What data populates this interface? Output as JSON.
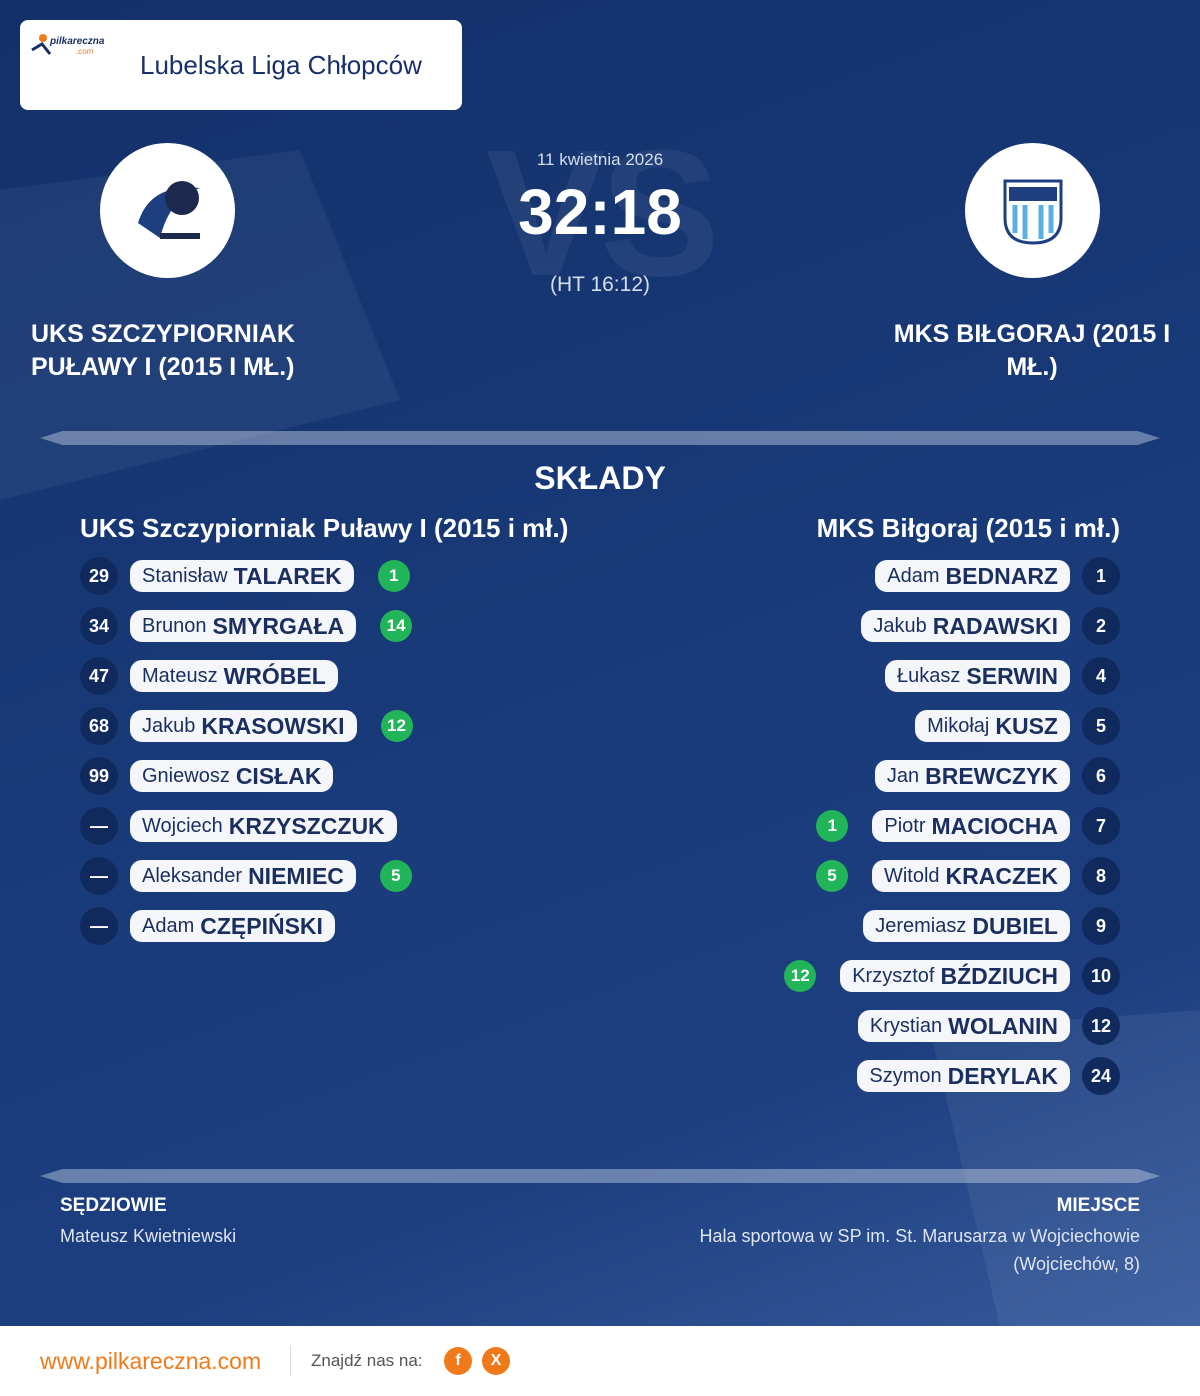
{
  "header": {
    "logo_text": "pilkareczna",
    "logo_sub": ".com",
    "league": "Lubelska Liga Chłopców"
  },
  "match": {
    "vs": "VS",
    "date": "11 kwietnia 2026",
    "score": "32:18",
    "halftime": "(HT 16:12)",
    "home": "UKS SZCZYPIORNIAK PUŁAWY I (2015 I MŁ.)",
    "away": "MKS BIŁGORAJ (2015 I MŁ.)"
  },
  "lineups": {
    "title": "SKŁADY",
    "home": {
      "name": "UKS Szczypiorniak Puławy I (2015 i mł.)",
      "players": [
        {
          "number": 29,
          "first": "Stanisław",
          "last": "TALAREK",
          "goals": 1
        },
        {
          "number": 34,
          "first": "Brunon",
          "last": "SMYRGAŁA",
          "goals": 14
        },
        {
          "number": 47,
          "first": "Mateusz",
          "last": "WRÓBEL"
        },
        {
          "number": 68,
          "first": "Jakub",
          "last": "KRASOWSKI",
          "goals": 12
        },
        {
          "number": 99,
          "first": "Gniewosz",
          "last": "CISŁAK"
        },
        {
          "number": "—",
          "first": "Wojciech",
          "last": "KRZYSZCZUK"
        },
        {
          "number": "—",
          "first": "Aleksander",
          "last": "NIEMIEC",
          "goals": 5
        },
        {
          "number": "—",
          "first": "Adam",
          "last": "CZĘPIŃSKI"
        }
      ]
    },
    "away": {
      "name": "MKS Biłgoraj (2015 i mł.)",
      "players": [
        {
          "number": 1,
          "first": "Adam",
          "last": "BEDNARZ"
        },
        {
          "number": 2,
          "first": "Jakub",
          "last": "RADAWSKI"
        },
        {
          "number": 4,
          "first": "Łukasz",
          "last": "SERWIN"
        },
        {
          "number": 5,
          "first": "Mikołaj",
          "last": "KUSZ"
        },
        {
          "number": 6,
          "first": "Jan",
          "last": "BREWCZYK"
        },
        {
          "number": 7,
          "first": "Piotr",
          "last": "MACIOCHA",
          "goals": 1
        },
        {
          "number": 8,
          "first": "Witold",
          "last": "KRACZEK",
          "goals": 5
        },
        {
          "number": 9,
          "first": "Jeremiasz",
          "last": "DUBIEL"
        },
        {
          "number": 10,
          "first": "Krzysztof",
          "last": "BŹDZIUCH",
          "goals": 12
        },
        {
          "number": 12,
          "first": "Krystian",
          "last": "WOLANIN"
        },
        {
          "number": 24,
          "first": "Szymon",
          "last": "DERYLAK"
        }
      ]
    }
  },
  "officials": {
    "label": "SĘDZIOWIE",
    "referee": "Mateusz Kwietniewski"
  },
  "venue": {
    "label": "MIEJSCE",
    "name": "Hala sportowa w SP im. St. Marusarza w Wojciechowie",
    "place": "(Wojciechów, 8)"
  },
  "footer": {
    "site": "www.pilkareczna.com",
    "follow": "Znajdź nas na:",
    "facebook": "f",
    "x": "X"
  }
}
